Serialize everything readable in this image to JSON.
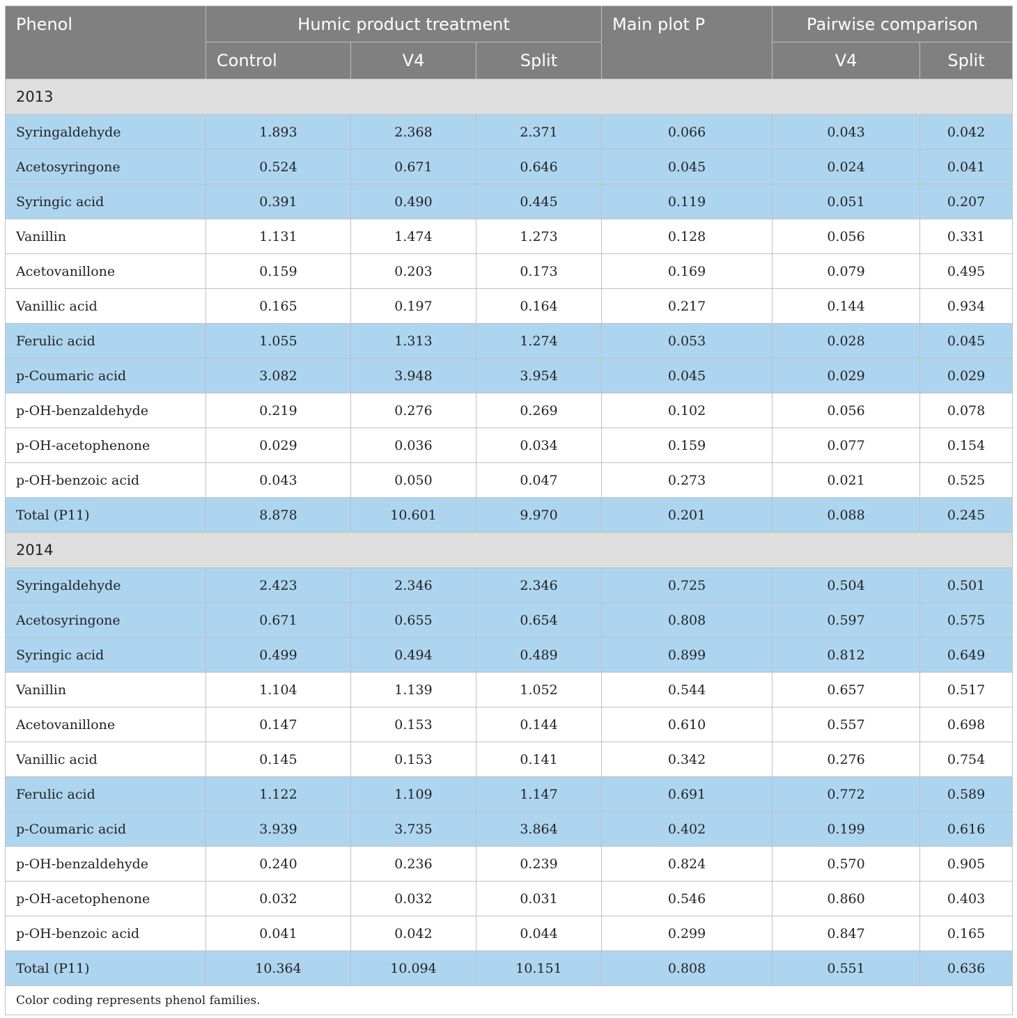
{
  "header": {
    "phenol": "Phenol",
    "humic_group": "Humic product treatment",
    "main_plot": "Main plot P",
    "pairwise_group": "Pairwise comparison",
    "sub": [
      "Control",
      "V4",
      "Split",
      "V4",
      "Split"
    ]
  },
  "sections": [
    {
      "year": "2013",
      "rows": [
        {
          "name": "Syringaldehyde",
          "values": [
            "1.893",
            "2.368",
            "2.371",
            "0.066",
            "0.043",
            "0.042"
          ],
          "highlight": true
        },
        {
          "name": "Acetosyringone",
          "values": [
            "0.524",
            "0.671",
            "0.646",
            "0.045",
            "0.024",
            "0.041"
          ],
          "highlight": true
        },
        {
          "name": "Syringic acid",
          "values": [
            "0.391",
            "0.490",
            "0.445",
            "0.119",
            "0.051",
            "0.207"
          ],
          "highlight": true
        },
        {
          "name": "Vanillin",
          "values": [
            "1.131",
            "1.474",
            "1.273",
            "0.128",
            "0.056",
            "0.331"
          ],
          "highlight": false
        },
        {
          "name": "Acetovanillone",
          "values": [
            "0.159",
            "0.203",
            "0.173",
            "0.169",
            "0.079",
            "0.495"
          ],
          "highlight": false
        },
        {
          "name": "Vanillic acid",
          "values": [
            "0.165",
            "0.197",
            "0.164",
            "0.217",
            "0.144",
            "0.934"
          ],
          "highlight": false
        },
        {
          "name": "Ferulic acid",
          "values": [
            "1.055",
            "1.313",
            "1.274",
            "0.053",
            "0.028",
            "0.045"
          ],
          "highlight": true
        },
        {
          "name": "p-Coumaric acid",
          "values": [
            "3.082",
            "3.948",
            "3.954",
            "0.045",
            "0.029",
            "0.029"
          ],
          "highlight": true
        },
        {
          "name": "p-OH-benzaldehyde",
          "values": [
            "0.219",
            "0.276",
            "0.269",
            "0.102",
            "0.056",
            "0.078"
          ],
          "highlight": false
        },
        {
          "name": "p-OH-acetophenone",
          "values": [
            "0.029",
            "0.036",
            "0.034",
            "0.159",
            "0.077",
            "0.154"
          ],
          "highlight": false
        },
        {
          "name": "p-OH-benzoic acid",
          "values": [
            "0.043",
            "0.050",
            "0.047",
            "0.273",
            "0.021",
            "0.525"
          ],
          "highlight": false
        },
        {
          "name": "Total (P11)",
          "values": [
            "8.878",
            "10.601",
            "9.970",
            "0.201",
            "0.088",
            "0.245"
          ],
          "highlight": true
        }
      ]
    },
    {
      "year": "2014",
      "rows": [
        {
          "name": "Syringaldehyde",
          "values": [
            "2.423",
            "2.346",
            "2.346",
            "0.725",
            "0.504",
            "0.501"
          ],
          "highlight": true
        },
        {
          "name": "Acetosyringone",
          "values": [
            "0.671",
            "0.655",
            "0.654",
            "0.808",
            "0.597",
            "0.575"
          ],
          "highlight": true
        },
        {
          "name": "Syringic acid",
          "values": [
            "0.499",
            "0.494",
            "0.489",
            "0.899",
            "0.812",
            "0.649"
          ],
          "highlight": true
        },
        {
          "name": "Vanillin",
          "values": [
            "1.104",
            "1.139",
            "1.052",
            "0.544",
            "0.657",
            "0.517"
          ],
          "highlight": false
        },
        {
          "name": "Acetovanillone",
          "values": [
            "0.147",
            "0.153",
            "0.144",
            "0.610",
            "0.557",
            "0.698"
          ],
          "highlight": false
        },
        {
          "name": "Vanillic acid",
          "values": [
            "0.145",
            "0.153",
            "0.141",
            "0.342",
            "0.276",
            "0.754"
          ],
          "highlight": false
        },
        {
          "name": "Ferulic acid",
          "values": [
            "1.122",
            "1.109",
            "1.147",
            "0.691",
            "0.772",
            "0.589"
          ],
          "highlight": true
        },
        {
          "name": "p-Coumaric acid",
          "values": [
            "3.939",
            "3.735",
            "3.864",
            "0.402",
            "0.199",
            "0.616"
          ],
          "highlight": true
        },
        {
          "name": "p-OH-benzaldehyde",
          "values": [
            "0.240",
            "0.236",
            "0.239",
            "0.824",
            "0.570",
            "0.905"
          ],
          "highlight": false
        },
        {
          "name": "p-OH-acetophenone",
          "values": [
            "0.032",
            "0.032",
            "0.031",
            "0.546",
            "0.860",
            "0.403"
          ],
          "highlight": false
        },
        {
          "name": "p-OH-benzoic acid",
          "values": [
            "0.041",
            "0.042",
            "0.044",
            "0.299",
            "0.847",
            "0.165"
          ],
          "highlight": false
        },
        {
          "name": "Total (P11)",
          "values": [
            "10.364",
            "10.094",
            "10.151",
            "0.808",
            "0.551",
            "0.636"
          ],
          "highlight": true
        }
      ]
    }
  ],
  "footnote": "Color coding represents phenol families.",
  "colors": {
    "header_bg": "#7f807f",
    "highlight_bg": "#aed5f0",
    "year_bg": "#dedede"
  }
}
